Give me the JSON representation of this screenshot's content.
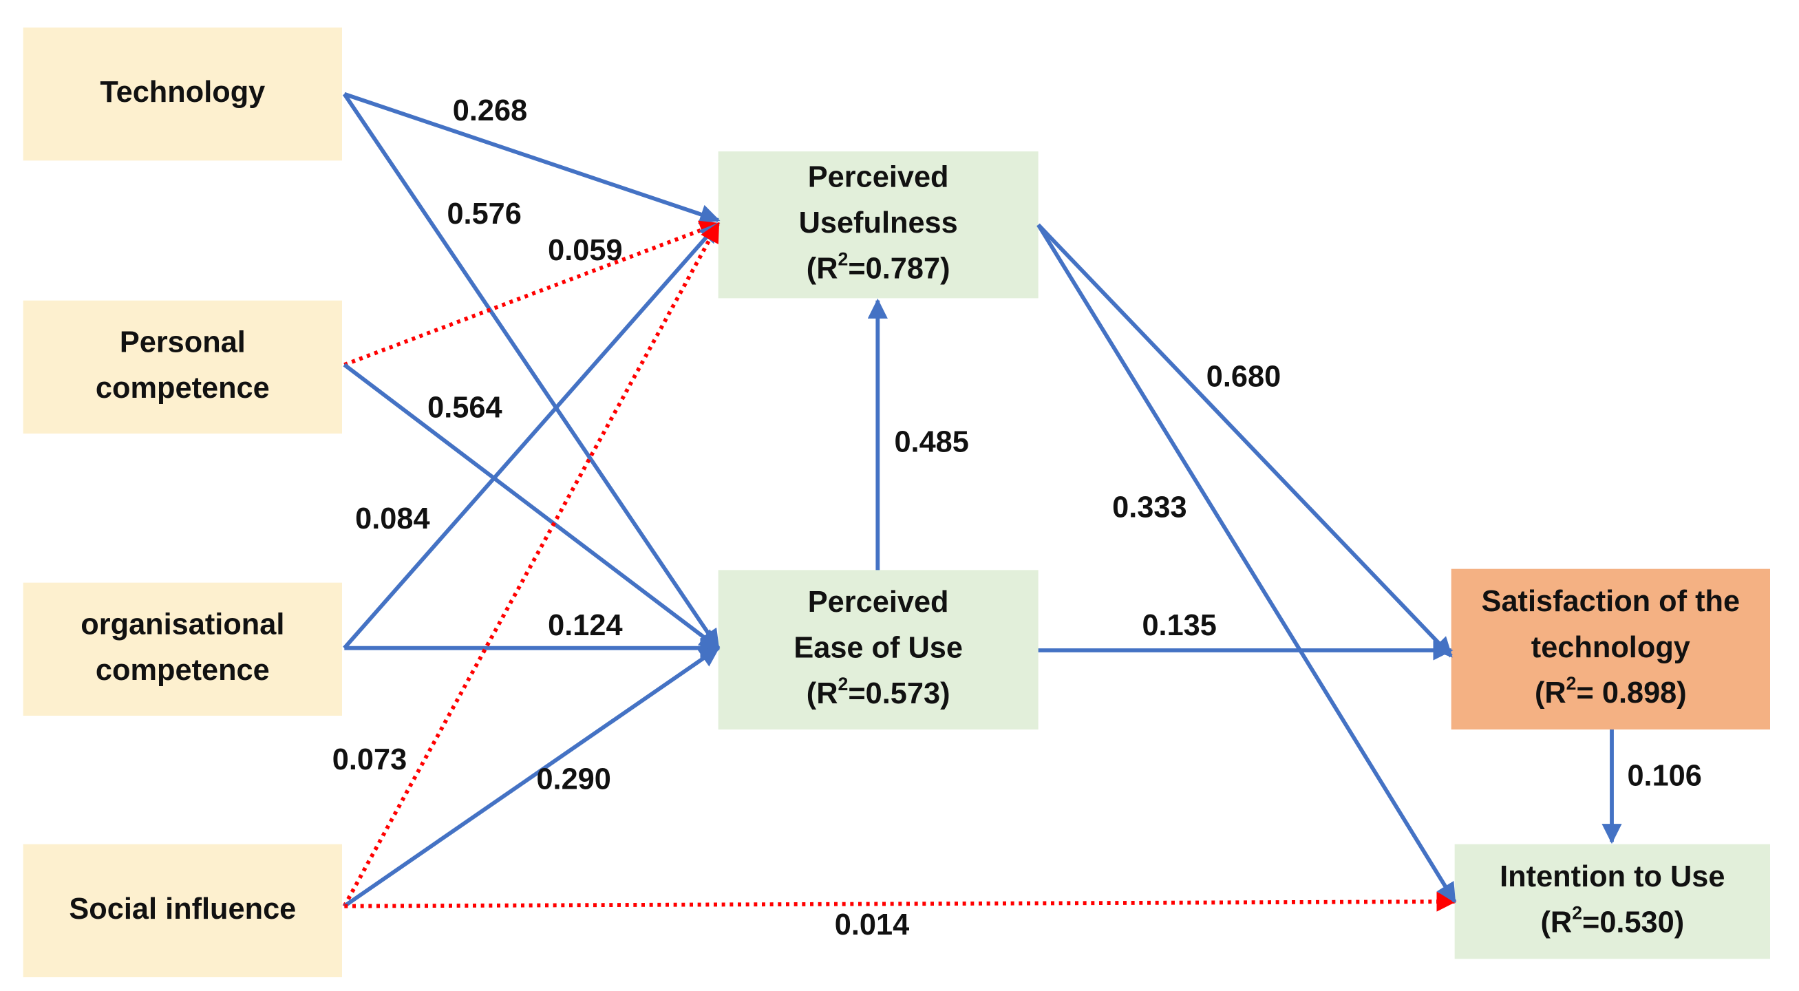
{
  "nodes": [
    {
      "lines": [
        "Technology"
      ],
      "fill": "#fdf0cf"
    },
    {
      "lines": [
        "Personal",
        "competence"
      ],
      "fill": "#fdf0cf"
    },
    {
      "lines": [
        "organisational",
        "competence"
      ],
      "fill": "#fdf0cf"
    },
    {
      "lines": [
        "Social influence"
      ],
      "fill": "#fdf0cf"
    },
    {
      "lines": [
        "Perceived",
        "Usefulness",
        {
          "prefix": "(R",
          "sup": "2",
          "suffix": "=0.787)"
        }
      ],
      "fill": "#e2efda"
    },
    {
      "lines": [
        "Perceived",
        "Ease of Use",
        {
          "prefix": "(R",
          "sup": "2",
          "suffix": "=0.573)"
        }
      ],
      "fill": "#e2efda"
    },
    {
      "lines": [
        "Satisfaction of the",
        "technology",
        {
          "prefix": "(R",
          "sup": "2",
          "suffix": "= 0.898)"
        }
      ],
      "fill": "#f4b183"
    },
    {
      "lines": [
        "Intention to Use",
        {
          "prefix": "(R",
          "sup": "2",
          "suffix": "=0.530)"
        }
      ],
      "fill": "#e2efda"
    }
  ],
  "edges": [
    {
      "label": "0.268",
      "style": "solid"
    },
    {
      "label": "0.576",
      "style": "solid"
    },
    {
      "label": "0.059",
      "style": "dotted"
    },
    {
      "label": "0.564",
      "style": "solid"
    },
    {
      "label": "0.084",
      "style": "solid"
    },
    {
      "label": "0.124",
      "style": "solid"
    },
    {
      "label": "0.073",
      "style": "dotted"
    },
    {
      "label": "0.290",
      "style": "solid"
    },
    {
      "label": "0.014",
      "style": "dotted"
    },
    {
      "label": "0.485",
      "style": "solid"
    },
    {
      "label": "0.680",
      "style": "solid"
    },
    {
      "label": "0.333",
      "style": "solid"
    },
    {
      "label": "0.135",
      "style": "solid"
    },
    {
      "label": "0.106",
      "style": "solid"
    }
  ],
  "colors": {
    "solid": "#4472c4",
    "dotted": "#ff0000"
  }
}
